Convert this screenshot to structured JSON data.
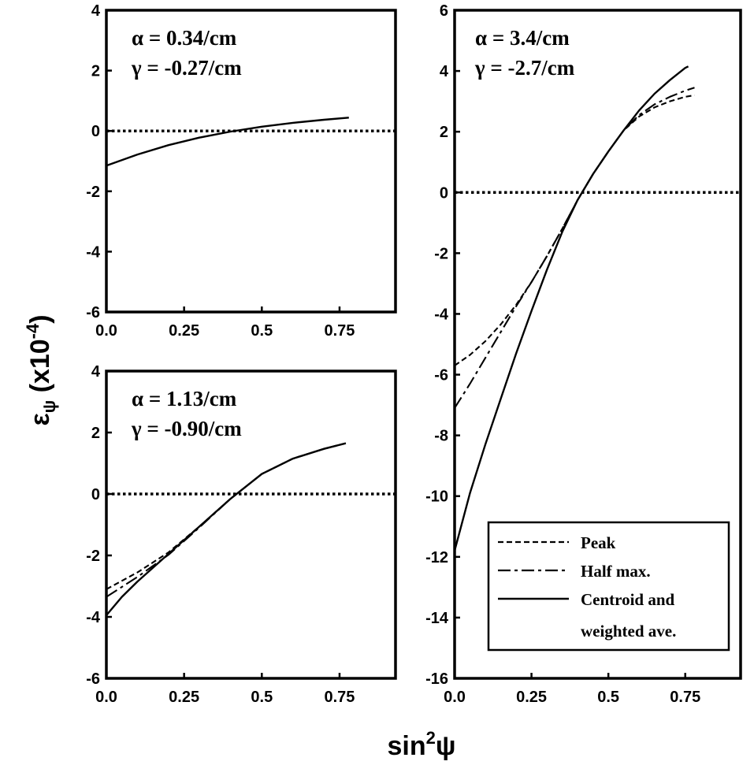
{
  "ylabel": {
    "main": "ε",
    "sub": "ψ",
    "rest": " (x10",
    "exp": "-4",
    "close": ")"
  },
  "xlabel": {
    "main": "sin",
    "exp": "2",
    "rest": "ψ"
  },
  "legend": {
    "items": [
      {
        "label": "Peak",
        "style": "dashed"
      },
      {
        "label": "Half max.",
        "style": "dashdot"
      },
      {
        "label": "Centroid and",
        "label2": "weighted ave.",
        "style": "solid"
      }
    ]
  },
  "chart_data": [
    {
      "type": "line",
      "panel": "top-left",
      "annotation": [
        "α = 0.34/cm",
        "γ = -0.27/cm"
      ],
      "xlim": [
        0,
        0.93
      ],
      "ylim": [
        -6,
        4
      ],
      "xticks": [
        0,
        0.25,
        0.5,
        0.75
      ],
      "xtick_labels": [
        "0.0",
        "0.25",
        "0.5",
        "0.75"
      ],
      "yticks": [
        -6,
        -4,
        -2,
        0,
        2,
        4
      ],
      "ytick_labels": [
        "-6",
        "-4",
        "-2",
        "0",
        "2",
        "4"
      ],
      "zero_line": true,
      "series": [
        {
          "style": "solid",
          "x": [
            0,
            0.1,
            0.2,
            0.3,
            0.4,
            0.5,
            0.6,
            0.7,
            0.78
          ],
          "y": [
            -1.15,
            -0.78,
            -0.47,
            -0.22,
            -0.02,
            0.14,
            0.27,
            0.37,
            0.44
          ]
        }
      ]
    },
    {
      "type": "line",
      "panel": "bottom-left",
      "annotation": [
        "α = 1.13/cm",
        "γ = -0.90/cm"
      ],
      "xlim": [
        0,
        0.93
      ],
      "ylim": [
        -6,
        4
      ],
      "xticks": [
        0,
        0.25,
        0.5,
        0.75
      ],
      "xtick_labels": [
        "0.0",
        "0.25",
        "0.5",
        "0.75"
      ],
      "yticks": [
        -6,
        -4,
        -2,
        0,
        2,
        4
      ],
      "ytick_labels": [
        "-6",
        "-4",
        "-2",
        "0",
        "2",
        "4"
      ],
      "zero_line": true,
      "series": [
        {
          "style": "dashed",
          "x": [
            0,
            0.1,
            0.2,
            0.3,
            0.4,
            0.5,
            0.6,
            0.7,
            0.77
          ],
          "y": [
            -3.1,
            -2.55,
            -1.9,
            -1.05,
            -0.15,
            0.65,
            1.15,
            1.47,
            1.65
          ]
        },
        {
          "style": "dashdot",
          "x": [
            0,
            0.1,
            0.2,
            0.3,
            0.4,
            0.5,
            0.6,
            0.7,
            0.77
          ],
          "y": [
            -3.35,
            -2.7,
            -1.98,
            -1.08,
            -0.15,
            0.65,
            1.15,
            1.47,
            1.65
          ]
        },
        {
          "style": "solid",
          "x": [
            0,
            0.05,
            0.1,
            0.2,
            0.3,
            0.4,
            0.5,
            0.6,
            0.7,
            0.77
          ],
          "y": [
            -3.95,
            -3.35,
            -2.85,
            -1.95,
            -1.05,
            -0.15,
            0.65,
            1.15,
            1.47,
            1.65
          ]
        }
      ]
    },
    {
      "type": "line",
      "panel": "right",
      "annotation": [
        "α = 3.4/cm",
        "γ = -2.7/cm"
      ],
      "xlim": [
        0,
        0.93
      ],
      "ylim": [
        -16,
        6
      ],
      "xticks": [
        0,
        0.25,
        0.5,
        0.75
      ],
      "xtick_labels": [
        "0.0",
        "0.25",
        "0.5",
        "0.75"
      ],
      "yticks": [
        -16,
        -14,
        -12,
        -10,
        -8,
        -6,
        -4,
        -2,
        0,
        2,
        4,
        6
      ],
      "ytick_labels": [
        "-16",
        "-14",
        "-12",
        "-10",
        "-8",
        "-6",
        "-4",
        "-2",
        "0",
        "2",
        "4",
        "6"
      ],
      "zero_line": true,
      "series": [
        {
          "name": "Peak",
          "style": "dashed",
          "x": [
            0,
            0.05,
            0.1,
            0.15,
            0.2,
            0.25,
            0.3,
            0.35,
            0.4,
            0.45,
            0.5,
            0.55,
            0.6,
            0.65,
            0.7,
            0.75,
            0.78
          ],
          "y": [
            -5.7,
            -5.35,
            -4.9,
            -4.35,
            -3.7,
            -2.95,
            -2.1,
            -1.2,
            -0.25,
            0.6,
            1.35,
            2.05,
            2.5,
            2.8,
            3.0,
            3.15,
            3.2
          ]
        },
        {
          "name": "Half max.",
          "style": "dashdot",
          "x": [
            0,
            0.05,
            0.1,
            0.15,
            0.2,
            0.25,
            0.3,
            0.35,
            0.4,
            0.45,
            0.5,
            0.55,
            0.6,
            0.65,
            0.7,
            0.75,
            0.78
          ],
          "y": [
            -7.1,
            -6.3,
            -5.45,
            -4.6,
            -3.75,
            -2.95,
            -2.1,
            -1.2,
            -0.25,
            0.6,
            1.35,
            2.05,
            2.55,
            2.9,
            3.15,
            3.35,
            3.45
          ]
        },
        {
          "name": "Centroid and weighted ave.",
          "style": "solid",
          "x": [
            0,
            0.05,
            0.1,
            0.15,
            0.2,
            0.25,
            0.3,
            0.35,
            0.4,
            0.45,
            0.5,
            0.55,
            0.6,
            0.65,
            0.7,
            0.75,
            0.76
          ],
          "y": [
            -11.8,
            -9.9,
            -8.3,
            -6.8,
            -5.3,
            -3.9,
            -2.55,
            -1.3,
            -0.25,
            0.6,
            1.35,
            2.05,
            2.7,
            3.25,
            3.7,
            4.1,
            4.15
          ]
        }
      ]
    }
  ]
}
